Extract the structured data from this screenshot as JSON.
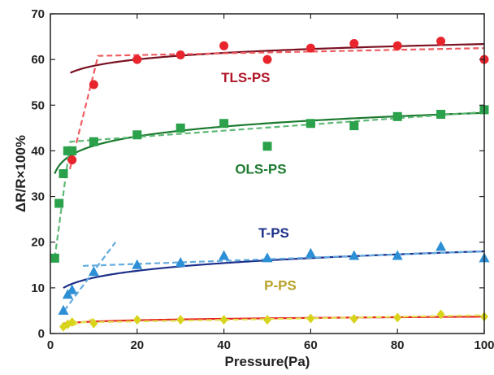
{
  "chart_data": {
    "type": "scatter",
    "xlabel": "Pressure(Pa)",
    "ylabel": "ΔR/R×100%",
    "xlim": [
      0,
      100
    ],
    "ylim": [
      0,
      70
    ],
    "xticks": [
      0,
      20,
      40,
      60,
      80,
      100
    ],
    "yticks": [
      0,
      10,
      20,
      30,
      40,
      50,
      60,
      70
    ],
    "grid": false,
    "series": [
      {
        "name": "TLS-PS",
        "marker": "circle",
        "color": "#e8252c",
        "fit_color": "#7a1020",
        "label_color": "#b0182a",
        "label_pos": [
          45,
          55
        ],
        "x": [
          5,
          10,
          20,
          30,
          40,
          50,
          60,
          70,
          80,
          90,
          100
        ],
        "y": [
          38,
          54.5,
          60,
          61,
          63,
          60,
          62.5,
          63.5,
          63,
          64,
          60
        ],
        "fit": {
          "type": "power",
          "a": 54.2,
          "b": 0.034,
          "x0": 4.6
        },
        "piecewise": [
          [
            4.5,
            36
          ],
          [
            11,
            60.8
          ],
          [
            100,
            62.5
          ]
        ]
      },
      {
        "name": "OLS-PS",
        "marker": "square",
        "color": "#2aa14a",
        "fit_color": "#1c7a2f",
        "label_color": "#1c7a2f",
        "label_pos": [
          48.5,
          35
        ],
        "x": [
          1,
          2,
          3,
          4,
          5,
          10,
          20,
          30,
          40,
          50,
          60,
          70,
          80,
          90,
          100
        ],
        "y": [
          16.5,
          28.5,
          35,
          40,
          40,
          42,
          43.5,
          45,
          46,
          41,
          46,
          45.5,
          47.5,
          48,
          49
        ],
        "fit": {
          "type": "power",
          "a": 35.0,
          "b": 0.07,
          "x0": 1
        },
        "piecewise": [
          [
            1,
            16.5
          ],
          [
            4.6,
            42
          ],
          [
            100,
            48.5
          ]
        ]
      },
      {
        "name": "T-PS",
        "marker": "triangle",
        "color": "#2d8fd5",
        "fit_color": "#1c2f8a",
        "label_color": "#1c2f8a",
        "label_pos": [
          51.5,
          21
        ],
        "x": [
          3,
          4,
          5,
          10,
          20,
          30,
          40,
          50,
          60,
          70,
          80,
          90,
          100
        ],
        "y": [
          5,
          8.5,
          9.5,
          13.5,
          15,
          15.5,
          17,
          16.5,
          17.5,
          17,
          17,
          19,
          16.5
        ],
        "fit": {
          "type": "power",
          "a": 8.3,
          "b": 0.168,
          "x0": 3
        },
        "piecewise": [
          [
            3.2,
            5
          ],
          [
            15,
            20
          ]
        ],
        "piecewise2": [
          [
            7.5,
            14.8
          ],
          [
            100,
            18
          ]
        ]
      },
      {
        "name": "P-PS",
        "marker": "diamond",
        "color": "#d8d41c",
        "fit_color": "#e6231c",
        "label_color": "#b8a02a",
        "label_pos": [
          53,
          9.5
        ],
        "x": [
          3,
          4,
          5,
          10,
          20,
          30,
          40,
          50,
          60,
          70,
          80,
          90,
          100
        ],
        "y": [
          1.5,
          2,
          2.5,
          2.2,
          3,
          3,
          3,
          3,
          3.3,
          3.2,
          3.5,
          4.2,
          3.7
        ],
        "fit": {
          "type": "power",
          "a": 1.85,
          "b": 0.15,
          "x0": 3
        },
        "piecewise": [
          [
            3,
            1.2
          ],
          [
            10,
            3.2
          ]
        ],
        "piecewise2": [
          [
            5,
            2.4
          ],
          [
            100,
            4
          ]
        ]
      }
    ]
  }
}
